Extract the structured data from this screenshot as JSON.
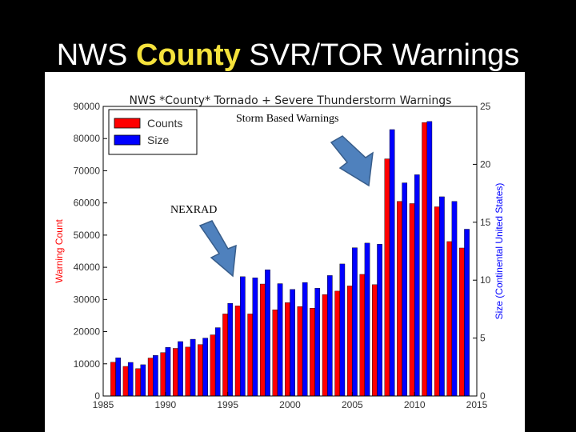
{
  "slide": {
    "title_prefix": "NWS ",
    "title_highlight": "County",
    "title_suffix": " SVR/TOR Warnings"
  },
  "chart_data": {
    "type": "bar",
    "title": "NWS *County* Tornado + Severe Thunderstorm Warnings",
    "xlabel": "",
    "ylabel_left": "Warning Count",
    "ylabel_right": "Size (Continental United States)",
    "xlim": [
      1985,
      2015
    ],
    "ylim_left": [
      0,
      90000
    ],
    "ylim_right": [
      0,
      25
    ],
    "x_ticks": [
      1985,
      1990,
      1995,
      2000,
      2005,
      2010,
      2015
    ],
    "y_ticks_left": [
      0,
      10000,
      20000,
      30000,
      40000,
      50000,
      60000,
      70000,
      80000,
      90000
    ],
    "y_ticks_right": [
      0,
      5,
      10,
      15,
      20,
      25
    ],
    "grid": false,
    "legend_position": "top-left",
    "x": [
      1986,
      1987,
      1988,
      1989,
      1990,
      1991,
      1992,
      1993,
      1994,
      1995,
      1996,
      1997,
      1998,
      1999,
      2000,
      2001,
      2002,
      2003,
      2004,
      2005,
      2006,
      2007,
      2008,
      2009,
      2010,
      2011,
      2012,
      2013,
      2014
    ],
    "series": [
      {
        "name": "Counts",
        "axis": "left",
        "color": "#ff0000",
        "values": [
          10500,
          9200,
          8500,
          11800,
          13500,
          14800,
          15200,
          16000,
          19000,
          25500,
          28000,
          25500,
          34800,
          26800,
          29000,
          27800,
          27300,
          31500,
          32600,
          34200,
          37800,
          34600,
          73700,
          60500,
          59800,
          85000,
          58800,
          48000,
          46000
        ]
      },
      {
        "name": "Size",
        "axis": "right",
        "color": "#0000ff",
        "values": [
          3.3,
          2.9,
          2.7,
          3.5,
          4.2,
          4.7,
          4.9,
          5.0,
          5.9,
          8.0,
          10.3,
          10.2,
          10.9,
          9.7,
          9.2,
          9.8,
          9.3,
          10.4,
          11.4,
          12.8,
          13.2,
          13.1,
          23.0,
          18.4,
          19.1,
          23.7,
          17.2,
          16.8,
          14.4
        ]
      }
    ],
    "annotations": [
      {
        "text": "Storm Based Warnings"
      },
      {
        "text": "NEXRAD"
      }
    ],
    "colors": {
      "counts": "#ff0000",
      "size": "#0000ff",
      "arrow_fill": "#4f81bd",
      "arrow_stroke": "#385d8a",
      "title_highlight": "#f5e23c"
    }
  }
}
